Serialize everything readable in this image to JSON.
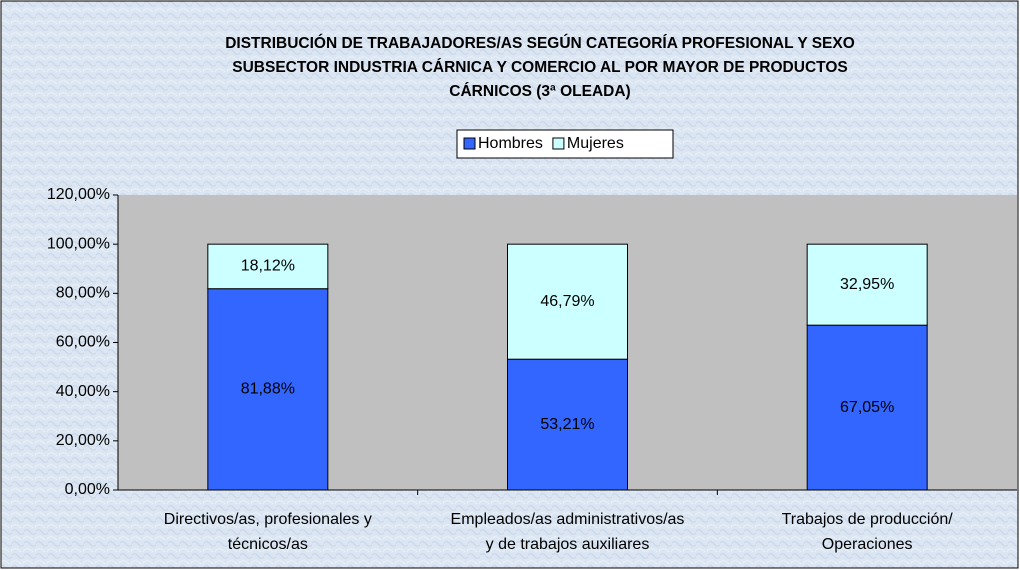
{
  "chart_data": {
    "type": "stacked_bar",
    "title": [
      "DISTRIBUCIÓN DE TRABAJADORES/AS SEGÚN CATEGORÍA PROFESIONAL Y SEXO",
      "SUBSECTOR INDUSTRIA CÁRNICA Y COMERCIO AL POR MAYOR DE PRODUCTOS",
      "CÁRNICOS (3ª OLEADA)"
    ],
    "categories": [
      [
        "Directivos/as, profesionales y",
        "técnicos/as"
      ],
      [
        "Empleados/as administrativos/as",
        "y de trabajos auxiliares"
      ],
      [
        "Trabajos de producción/",
        "Operaciones"
      ]
    ],
    "series": [
      {
        "name": "Hombres",
        "color": "#3366ff",
        "values": [
          81.88,
          53.21,
          67.05
        ],
        "value_labels": [
          "81,88%",
          "53,21%",
          "67,05%"
        ]
      },
      {
        "name": "Mujeres",
        "color": "#ccffff",
        "values": [
          18.12,
          46.79,
          32.95
        ],
        "value_labels": [
          "18,12%",
          "46,79%",
          "32,95%"
        ]
      }
    ],
    "ylim": [
      0,
      120
    ],
    "yticks": [
      {
        "value": 0,
        "label": "0,00%"
      },
      {
        "value": 20,
        "label": "20,00%"
      },
      {
        "value": 40,
        "label": "40,00%"
      },
      {
        "value": 60,
        "label": "60,00%"
      },
      {
        "value": 80,
        "label": "80,00%"
      },
      {
        "value": 100,
        "label": "100,00%"
      },
      {
        "value": 120,
        "label": "120,00%"
      }
    ],
    "legend": "top"
  }
}
